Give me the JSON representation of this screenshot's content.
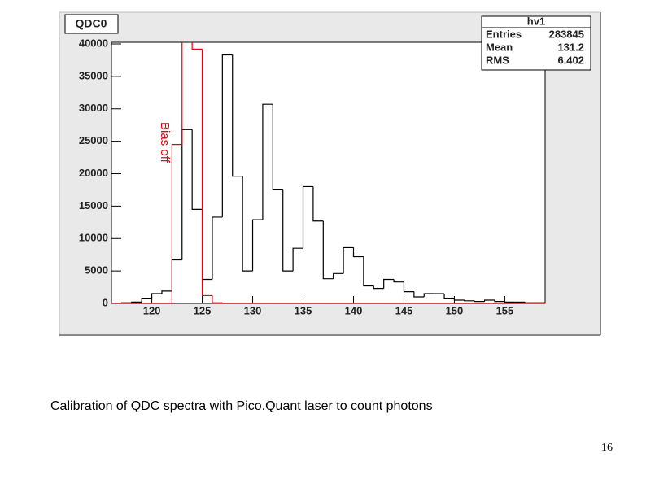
{
  "chart_data": {
    "type": "histogram",
    "title": "QDC0",
    "bins": [
      116,
      117,
      118,
      119,
      120,
      121,
      122,
      123,
      124,
      125,
      126,
      127,
      128,
      129,
      130,
      131,
      132,
      133,
      134,
      135,
      136,
      137,
      138,
      139,
      140,
      141,
      142,
      143,
      144,
      145,
      146,
      147,
      148,
      149,
      150,
      151,
      152,
      153,
      154,
      155,
      156,
      157,
      158,
      159
    ],
    "series": [
      {
        "color": "#000000",
        "values": [
          0,
          100,
          200,
          700,
          1500,
          1900,
          6700,
          26800,
          14500,
          3700,
          13300,
          38300,
          19600,
          5000,
          12900,
          30700,
          17600,
          5000,
          8500,
          18000,
          12700,
          3800,
          4600,
          8600,
          7200,
          2700,
          2300,
          3700,
          3300,
          1800,
          1000,
          1500,
          1500,
          700,
          500,
          400,
          300,
          500,
          300,
          200,
          200,
          100,
          100
        ]
      },
      {
        "color": "#e8000b",
        "values": [
          0,
          0,
          0,
          0,
          0,
          0,
          24500,
          42000,
          39200,
          1200,
          100,
          0,
          0,
          0,
          0,
          0,
          0,
          0,
          0,
          0,
          0,
          0,
          0,
          0,
          0,
          0,
          0,
          0,
          0,
          0,
          0,
          0,
          0,
          0,
          0,
          0,
          0,
          0,
          0,
          0,
          0,
          0,
          0
        ]
      }
    ],
    "annotation": "Bias off",
    "xlim": [
      116,
      159
    ],
    "xticks": [
      120,
      125,
      130,
      135,
      140,
      145,
      150,
      155
    ],
    "ylim": [
      0,
      40250
    ],
    "yticks": [
      0,
      5000,
      10000,
      15000,
      20000,
      25000,
      30000,
      35000,
      40000
    ],
    "stats": {
      "title": "hv1",
      "rows": [
        [
          "Entries",
          283845
        ],
        [
          "Mean",
          131.2
        ],
        [
          "RMS",
          6.402
        ]
      ]
    }
  },
  "caption": "Calibration of QDC spectra with Pico.Quant laser to count photons",
  "page_number": "16"
}
